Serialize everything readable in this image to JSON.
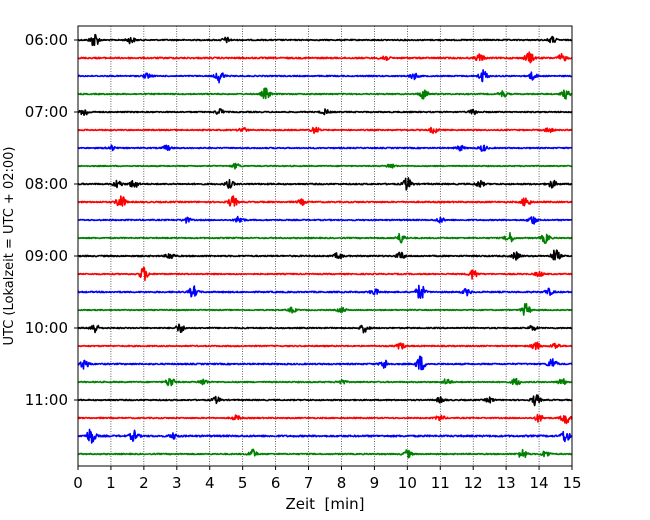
{
  "chart_data": {
    "type": "line",
    "xlabel": "Zeit  [min]",
    "ylabel": "UTC (Lokalzeit = UTC + 02:00)",
    "xlim": [
      0,
      15
    ],
    "x_ticks": [
      0,
      1,
      2,
      3,
      4,
      5,
      6,
      7,
      8,
      9,
      10,
      11,
      12,
      13,
      14,
      15
    ],
    "grid": "vertical dotted",
    "y_tick_labels": [
      "06:00",
      "07:00",
      "08:00",
      "09:00",
      "10:00",
      "11:00"
    ],
    "y_tick_rows": [
      0,
      4,
      8,
      12,
      16,
      20
    ],
    "trace_colors": [
      "#000000",
      "#ff0000",
      "#0000ff",
      "#008000"
    ],
    "rows": [
      {
        "time": "06:00",
        "color_index": 0,
        "amplitude": 0.35,
        "events": [
          {
            "x": 0.5,
            "a": 1.2
          },
          {
            "x": 1.6,
            "a": 0.5
          },
          {
            "x": 4.5,
            "a": 0.4
          },
          {
            "x": 14.4,
            "a": 0.5
          }
        ]
      },
      {
        "time": "06:15",
        "color_index": 1,
        "amplitude": 0.45,
        "events": [
          {
            "x": 9.3,
            "a": 0.5
          },
          {
            "x": 12.2,
            "a": 0.6
          },
          {
            "x": 13.7,
            "a": 0.9
          },
          {
            "x": 14.7,
            "a": 0.6
          }
        ]
      },
      {
        "time": "06:30",
        "color_index": 2,
        "amplitude": 0.35,
        "events": [
          {
            "x": 2.1,
            "a": 0.4
          },
          {
            "x": 4.3,
            "a": 1.0
          },
          {
            "x": 10.2,
            "a": 0.5
          },
          {
            "x": 12.3,
            "a": 1.0
          },
          {
            "x": 13.8,
            "a": 0.6
          }
        ]
      },
      {
        "time": "06:45",
        "color_index": 3,
        "amplitude": 0.35,
        "events": [
          {
            "x": 5.7,
            "a": 0.9
          },
          {
            "x": 10.5,
            "a": 0.8
          },
          {
            "x": 12.9,
            "a": 0.5
          },
          {
            "x": 14.8,
            "a": 0.7
          }
        ]
      },
      {
        "time": "07:00",
        "color_index": 0,
        "amplitude": 0.35,
        "events": [
          {
            "x": 0.2,
            "a": 0.6
          },
          {
            "x": 4.3,
            "a": 0.5
          },
          {
            "x": 7.5,
            "a": 0.4
          },
          {
            "x": 12.0,
            "a": 0.4
          }
        ]
      },
      {
        "time": "07:15",
        "color_index": 1,
        "amplitude": 0.35,
        "events": [
          {
            "x": 5.0,
            "a": 0.4
          },
          {
            "x": 7.2,
            "a": 0.5
          },
          {
            "x": 10.8,
            "a": 0.5
          },
          {
            "x": 14.3,
            "a": 0.4
          }
        ]
      },
      {
        "time": "07:30",
        "color_index": 2,
        "amplitude": 0.35,
        "events": [
          {
            "x": 1.0,
            "a": 0.4
          },
          {
            "x": 2.7,
            "a": 0.4
          },
          {
            "x": 11.6,
            "a": 0.4
          },
          {
            "x": 12.3,
            "a": 0.5
          }
        ]
      },
      {
        "time": "07:45",
        "color_index": 3,
        "amplitude": 0.3,
        "events": [
          {
            "x": 4.8,
            "a": 0.4
          },
          {
            "x": 9.5,
            "a": 0.4
          }
        ]
      },
      {
        "time": "08:00",
        "color_index": 0,
        "amplitude": 0.4,
        "events": [
          {
            "x": 1.2,
            "a": 0.6
          },
          {
            "x": 1.7,
            "a": 0.7
          },
          {
            "x": 4.6,
            "a": 0.6
          },
          {
            "x": 10.0,
            "a": 1.0
          },
          {
            "x": 12.2,
            "a": 0.5
          },
          {
            "x": 14.4,
            "a": 0.6
          }
        ]
      },
      {
        "time": "08:15",
        "color_index": 1,
        "amplitude": 0.4,
        "events": [
          {
            "x": 1.3,
            "a": 1.2
          },
          {
            "x": 4.7,
            "a": 0.9
          },
          {
            "x": 6.8,
            "a": 0.4
          },
          {
            "x": 13.6,
            "a": 0.8
          }
        ]
      },
      {
        "time": "08:30",
        "color_index": 2,
        "amplitude": 0.35,
        "events": [
          {
            "x": 3.3,
            "a": 0.4
          },
          {
            "x": 4.9,
            "a": 0.6
          },
          {
            "x": 11.0,
            "a": 0.4
          },
          {
            "x": 13.8,
            "a": 0.7
          }
        ]
      },
      {
        "time": "08:45",
        "color_index": 3,
        "amplitude": 0.35,
        "events": [
          {
            "x": 9.8,
            "a": 0.8
          },
          {
            "x": 13.1,
            "a": 0.8
          },
          {
            "x": 14.2,
            "a": 0.8
          }
        ]
      },
      {
        "time": "09:00",
        "color_index": 0,
        "amplitude": 0.4,
        "events": [
          {
            "x": 2.8,
            "a": 0.5
          },
          {
            "x": 7.9,
            "a": 0.5
          },
          {
            "x": 9.8,
            "a": 0.6
          },
          {
            "x": 13.3,
            "a": 0.6
          },
          {
            "x": 14.5,
            "a": 1.0
          }
        ]
      },
      {
        "time": "09:15",
        "color_index": 1,
        "amplitude": 0.35,
        "events": [
          {
            "x": 2.0,
            "a": 1.1
          },
          {
            "x": 12.0,
            "a": 0.8
          },
          {
            "x": 14.0,
            "a": 0.4
          }
        ]
      },
      {
        "time": "09:30",
        "color_index": 2,
        "amplitude": 0.4,
        "events": [
          {
            "x": 3.5,
            "a": 0.9
          },
          {
            "x": 9.0,
            "a": 0.5
          },
          {
            "x": 10.4,
            "a": 1.3
          },
          {
            "x": 11.8,
            "a": 0.5
          },
          {
            "x": 14.3,
            "a": 0.5
          }
        ]
      },
      {
        "time": "09:45",
        "color_index": 3,
        "amplitude": 0.3,
        "events": [
          {
            "x": 6.5,
            "a": 0.4
          },
          {
            "x": 8.0,
            "a": 0.4
          },
          {
            "x": 13.6,
            "a": 1.0
          }
        ]
      },
      {
        "time": "10:00",
        "color_index": 0,
        "amplitude": 0.35,
        "events": [
          {
            "x": 0.5,
            "a": 0.8
          },
          {
            "x": 3.1,
            "a": 0.7
          },
          {
            "x": 8.7,
            "a": 0.7
          },
          {
            "x": 13.8,
            "a": 0.4
          }
        ]
      },
      {
        "time": "10:15",
        "color_index": 1,
        "amplitude": 0.35,
        "events": [
          {
            "x": 9.8,
            "a": 0.5
          },
          {
            "x": 13.9,
            "a": 0.7
          },
          {
            "x": 14.5,
            "a": 0.5
          }
        ]
      },
      {
        "time": "10:30",
        "color_index": 2,
        "amplitude": 0.4,
        "events": [
          {
            "x": 0.2,
            "a": 0.8
          },
          {
            "x": 9.3,
            "a": 0.7
          },
          {
            "x": 10.4,
            "a": 1.3
          },
          {
            "x": 14.4,
            "a": 0.9
          }
        ]
      },
      {
        "time": "10:45",
        "color_index": 3,
        "amplitude": 0.35,
        "events": [
          {
            "x": 2.8,
            "a": 0.8
          },
          {
            "x": 3.8,
            "a": 0.5
          },
          {
            "x": 8.0,
            "a": 0.4
          },
          {
            "x": 11.2,
            "a": 0.5
          },
          {
            "x": 13.3,
            "a": 0.6
          },
          {
            "x": 14.7,
            "a": 0.5
          }
        ]
      },
      {
        "time": "11:00",
        "color_index": 0,
        "amplitude": 0.35,
        "events": [
          {
            "x": 4.2,
            "a": 0.5
          },
          {
            "x": 11.0,
            "a": 0.4
          },
          {
            "x": 12.5,
            "a": 0.4
          },
          {
            "x": 13.9,
            "a": 0.9
          }
        ]
      },
      {
        "time": "11:15",
        "color_index": 1,
        "amplitude": 0.35,
        "events": [
          {
            "x": 4.8,
            "a": 0.4
          },
          {
            "x": 11.0,
            "a": 0.5
          },
          {
            "x": 14.0,
            "a": 0.6
          },
          {
            "x": 14.8,
            "a": 1.0
          }
        ]
      },
      {
        "time": "11:30",
        "color_index": 2,
        "amplitude": 0.5,
        "events": [
          {
            "x": 0.4,
            "a": 1.3
          },
          {
            "x": 1.7,
            "a": 0.8
          },
          {
            "x": 2.9,
            "a": 0.4
          },
          {
            "x": 14.8,
            "a": 1.0
          }
        ]
      },
      {
        "time": "11:45",
        "color_index": 3,
        "amplitude": 0.35,
        "events": [
          {
            "x": 5.3,
            "a": 0.7
          },
          {
            "x": 10.0,
            "a": 0.6
          },
          {
            "x": 13.5,
            "a": 0.8
          },
          {
            "x": 14.2,
            "a": 0.5
          }
        ]
      }
    ]
  }
}
